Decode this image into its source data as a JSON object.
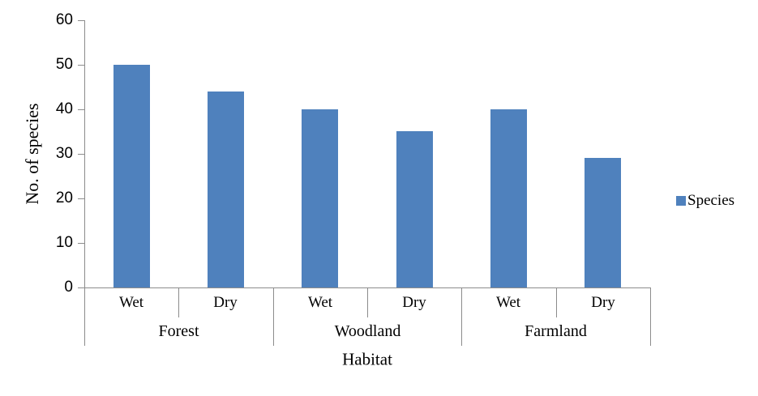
{
  "chart_data": {
    "type": "bar",
    "title": "",
    "xlabel": "Habitat",
    "ylabel": "No. of species",
    "groups": [
      "Forest",
      "Woodland",
      "Farmland"
    ],
    "subcategories": [
      "Wet",
      "Dry"
    ],
    "categories": [
      "Forest Wet",
      "Forest Dry",
      "Woodland Wet",
      "Woodland Dry",
      "Farmland Wet",
      "Farmland Dry"
    ],
    "series": [
      {
        "name": "Species",
        "values": [
          50,
          44,
          40,
          35,
          40,
          29
        ]
      }
    ],
    "ylim": [
      0,
      60
    ],
    "ytick_step": 10,
    "yticks": [
      0,
      10,
      20,
      30,
      40,
      50,
      60
    ],
    "grid": false,
    "legend": {
      "label": "Species",
      "position": "right"
    },
    "colors": {
      "bar": "#4F81BD",
      "axis": "#8C8C8C",
      "text": "#000000"
    }
  }
}
